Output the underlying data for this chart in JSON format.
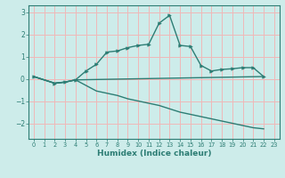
{
  "xlabel": "Humidex (Indice chaleur)",
  "curve1_x": [
    0,
    2,
    3,
    4,
    5,
    6,
    7,
    8,
    9,
    10,
    11,
    12,
    13,
    14,
    15,
    16,
    17,
    18,
    19,
    20,
    21,
    22
  ],
  "curve1_y": [
    0.1,
    -0.2,
    -0.15,
    -0.05,
    0.35,
    0.65,
    1.2,
    1.25,
    1.4,
    1.5,
    1.55,
    2.5,
    2.85,
    1.5,
    1.45,
    0.6,
    0.35,
    0.42,
    0.45,
    0.5,
    0.5,
    0.1
  ],
  "curve2_x": [
    0,
    2,
    3,
    4,
    22
  ],
  "curve2_y": [
    0.1,
    -0.2,
    -0.15,
    -0.05,
    0.1
  ],
  "curve3_x": [
    0,
    2,
    3,
    4,
    5,
    6,
    7,
    8,
    9,
    10,
    11,
    12,
    13,
    14,
    15,
    16,
    17,
    18,
    19,
    20,
    21,
    22
  ],
  "curve3_y": [
    0.1,
    -0.2,
    -0.15,
    -0.05,
    -0.3,
    -0.55,
    -0.65,
    -0.75,
    -0.9,
    -1.0,
    -1.1,
    -1.2,
    -1.35,
    -1.5,
    -1.6,
    -1.7,
    -1.8,
    -1.9,
    -2.0,
    -2.1,
    -2.2,
    -2.25
  ],
  "line_color": "#2d7d74",
  "bg_color": "#cdecea",
  "grid_color": "#f0b8b8",
  "xlim": [
    -0.5,
    23.5
  ],
  "ylim": [
    -2.7,
    3.3
  ],
  "yticks": [
    -2,
    -1,
    0,
    1,
    2,
    3
  ],
  "xticks": [
    0,
    1,
    2,
    3,
    4,
    5,
    6,
    7,
    8,
    9,
    10,
    11,
    12,
    13,
    14,
    15,
    16,
    17,
    18,
    19,
    20,
    21,
    22,
    23
  ]
}
